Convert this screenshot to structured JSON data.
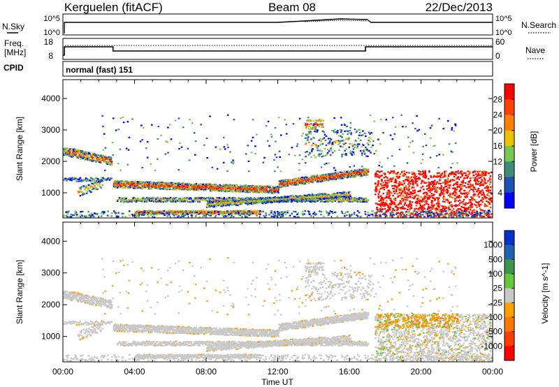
{
  "header": {
    "station": "Kerguelen (fitACF)",
    "beam": "Beam 08",
    "date": "22/Dec/2013"
  },
  "nsky_panel": {
    "left_label": "N.Sky",
    "right_label": "N.Search",
    "left_ticks": [
      "10^5",
      "10^0"
    ],
    "right_ticks": [
      "10^5",
      "10^0"
    ]
  },
  "freq_panel": {
    "left_label_line1": "Freq.",
    "left_label_line2": "[MHz]",
    "right_label": "Nave",
    "left_ticks": [
      "18",
      "8"
    ],
    "right_ticks": [
      "60",
      "0"
    ]
  },
  "cpid_panel": {
    "label": "CPID",
    "mode": "normal (fast) 151"
  },
  "chart_data": [
    {
      "type": "heatmap",
      "name": "power-panel",
      "xlabel": "",
      "ylabel": "Slant Range [km]",
      "y_ticks": [
        "1000",
        "2000",
        "3000",
        "4000"
      ],
      "ylim": [
        200,
        4600
      ],
      "colorbar": {
        "label": "Power [dB]",
        "ticks": [
          "28",
          "24",
          "20",
          "16",
          "12",
          "8",
          "4"
        ],
        "colors": [
          "#ff0000",
          "#ff4000",
          "#ff8000",
          "#f0c000",
          "#78c850",
          "#3c8c78",
          "#1e50b4",
          "#0000ff"
        ]
      },
      "regions": [
        {
          "t": [
            0,
            2.6
          ],
          "r": [
            1900,
            2500
          ],
          "level": "high"
        },
        {
          "t": [
            3,
            17
          ],
          "r": [
            900,
            1600
          ],
          "level": "high"
        },
        {
          "t": [
            17.5,
            24
          ],
          "r": [
            200,
            1700
          ],
          "level": "very high"
        },
        {
          "t": [
            13.5,
            17.2
          ],
          "r": [
            1800,
            3500
          ],
          "level": "medium"
        }
      ]
    },
    {
      "type": "heatmap",
      "name": "velocity-panel",
      "xlabel": "Time UT",
      "ylabel": "Slant Range [km]",
      "x_ticks": [
        "00:00",
        "04:00",
        "08:00",
        "12:00",
        "16:00",
        "20:00",
        "00:00"
      ],
      "y_ticks": [
        "1000",
        "2000",
        "3000",
        "4000"
      ],
      "ylim": [
        200,
        4600
      ],
      "colorbar": {
        "label": "Velocity [m s^-1]",
        "ticks": [
          "1000",
          "500",
          "100",
          "25",
          "-25",
          "-100",
          "-500",
          "-1000"
        ],
        "colors": [
          "#0032c8",
          "#1e64b4",
          "#3c9650",
          "#64c83c",
          "#c8c8c8",
          "#ffa000",
          "#ff7800",
          "#ff3c00",
          "#ff0000"
        ]
      },
      "regions": [
        {
          "t": [
            0,
            24
          ],
          "r": [
            200,
            2500
          ],
          "level": "near zero (grey)"
        },
        {
          "t": [
            17.5,
            22
          ],
          "r": [
            1300,
            1700
          ],
          "level": "negative (orange)"
        },
        {
          "t": [
            20,
            21
          ],
          "r": [
            1400,
            1600
          ],
          "level": "positive (green)"
        }
      ]
    }
  ],
  "colors": {
    "blue": "#0000ff",
    "red": "#ff0000",
    "grey": "#c8c8c8"
  }
}
